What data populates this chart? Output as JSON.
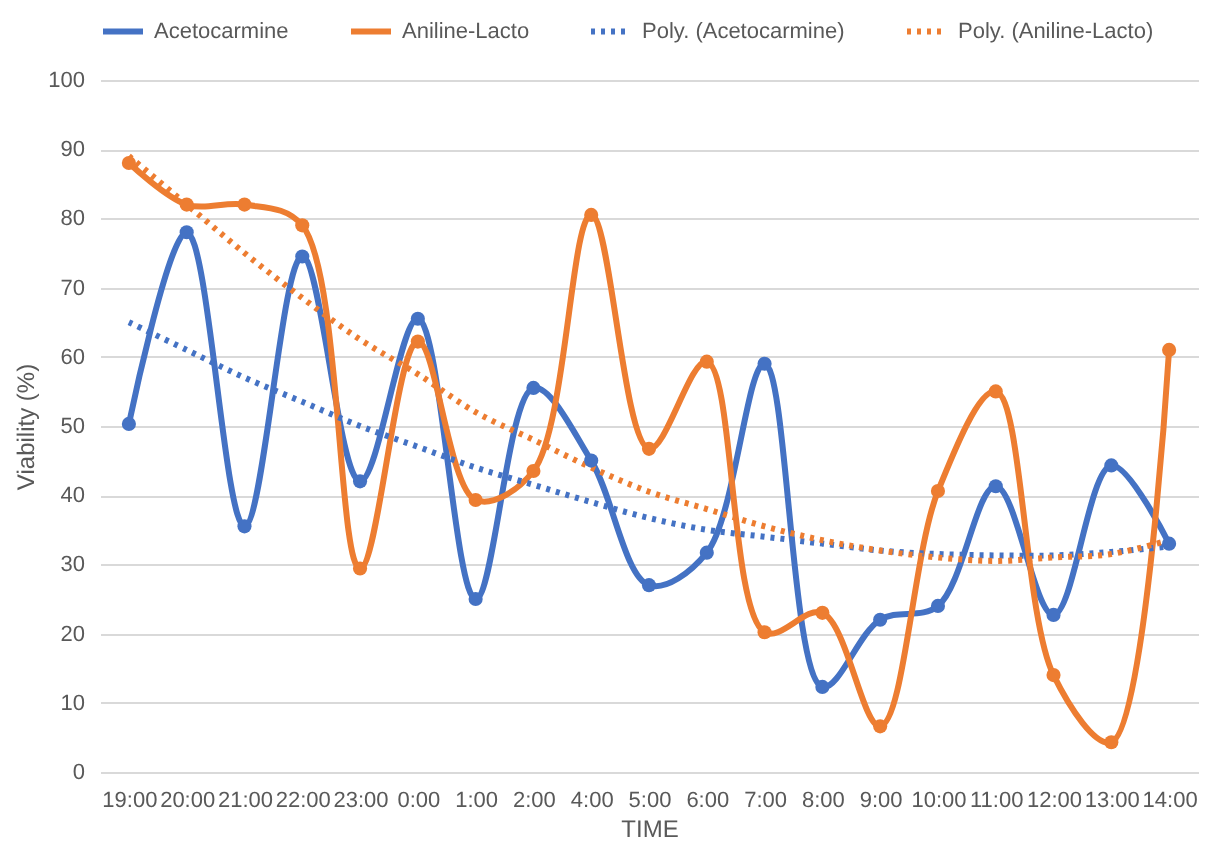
{
  "chart_data": {
    "type": "line",
    "xlabel": "TIME",
    "ylabel": "Viability (%)",
    "categories": [
      "19:00",
      "20:00",
      "21:00",
      "22:00",
      "23:00",
      "0:00",
      "1:00",
      "2:00",
      "4:00",
      "5:00",
      "6:00",
      "7:00",
      "8:00",
      "9:00",
      "10:00",
      "11:00",
      "12:00",
      "13:00",
      "14:00"
    ],
    "series": [
      {
        "name": "Acetocarmine",
        "color": "#4472c4",
        "line_style": "solid",
        "marker": "circle",
        "values": [
          50.3,
          78,
          35.5,
          74.5,
          42,
          65.5,
          25,
          55.5,
          45,
          27,
          31.7,
          59,
          12.3,
          22,
          24,
          41.3,
          22.7,
          44.3,
          33
        ]
      },
      {
        "name": "Aniline-Lacto",
        "color": "#ed7d31",
        "line_style": "solid",
        "marker": "circle",
        "values": [
          88,
          82,
          82,
          79,
          29.4,
          62.2,
          39.3,
          43.5,
          80.5,
          46.7,
          59.3,
          20.2,
          23,
          6.6,
          40.6,
          55,
          14,
          4.3,
          61
        ]
      },
      {
        "name": "Poly. (Acetocarmine)",
        "color": "#4472c4",
        "line_style": "dotted",
        "marker": "none",
        "values": [
          65,
          61,
          57,
          53.5,
          50,
          47,
          44,
          41.5,
          39,
          36.7,
          35,
          34,
          33,
          32,
          31.5,
          31.3,
          31.3,
          31.8,
          32.6
        ]
      },
      {
        "name": "Poly. (Aniline-Lacto)",
        "color": "#ed7d31",
        "line_style": "dotted",
        "marker": "none",
        "values": [
          89,
          82,
          75,
          68.5,
          62.5,
          57.5,
          52,
          48,
          44,
          40.5,
          38,
          35.5,
          33.5,
          32,
          31,
          30.5,
          31,
          31.5,
          33.5
        ]
      }
    ],
    "ylim": [
      0,
      100
    ],
    "yticks": [
      0,
      10,
      20,
      30,
      40,
      50,
      60,
      70,
      80,
      90,
      100
    ],
    "grid": "y",
    "legend": "top"
  }
}
